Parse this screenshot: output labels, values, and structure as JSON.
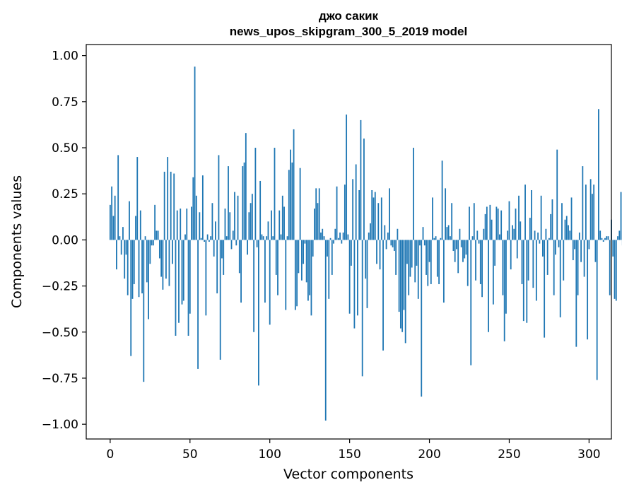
{
  "chart_data": {
    "type": "bar",
    "title": "джо сакик",
    "subtitle": "news_upos_skipgram_300_5_2019 model",
    "xlabel": "Vector components",
    "ylabel": "Components values",
    "xlim": [
      -15,
      314
    ],
    "ylim": [
      -1.08,
      1.06
    ],
    "xticks": [
      0,
      50,
      100,
      150,
      200,
      250,
      300
    ],
    "xtick_labels": [
      "0",
      "50",
      "100",
      "150",
      "200",
      "250",
      "300"
    ],
    "yticks": [
      1.0,
      0.75,
      0.5,
      0.25,
      0.0,
      -0.25,
      -0.5,
      -0.75,
      -1.0
    ],
    "ytick_labels": [
      "1.00",
      "0.75",
      "0.50",
      "0.25",
      "0.00",
      "−0.25",
      "−0.50",
      "−0.75",
      "−1.00"
    ],
    "bar_color": "#1f77b4",
    "series": [
      {
        "name": "components",
        "values": [
          0.19,
          0.29,
          0.13,
          0.24,
          -0.16,
          0.46,
          0.02,
          -0.08,
          0.07,
          -0.21,
          -0.08,
          -0.3,
          0.21,
          -0.63,
          -0.32,
          -0.24,
          0.13,
          0.45,
          -0.31,
          0.16,
          -0.29,
          -0.77,
          0.02,
          -0.23,
          -0.43,
          -0.13,
          -0.03,
          -0.03,
          0.19,
          0.05,
          0.05,
          -0.1,
          -0.2,
          -0.27,
          0.37,
          -0.21,
          0.45,
          -0.25,
          0.37,
          -0.13,
          0.36,
          -0.52,
          0.16,
          -0.45,
          0.17,
          -0.35,
          -0.33,
          0.03,
          0.17,
          -0.52,
          -0.4,
          0.18,
          0.34,
          0.94,
          0.24,
          -0.7,
          0.15,
          0.01,
          0.35,
          -0.01,
          -0.41,
          0.03,
          -0.01,
          0.02,
          0.2,
          -0.09,
          0.1,
          -0.29,
          0.46,
          -0.65,
          -0.1,
          -0.19,
          0.17,
          0.02,
          0.4,
          0.15,
          -0.05,
          0.05,
          0.26,
          -0.03,
          0.24,
          -0.18,
          -0.34,
          0.4,
          0.42,
          0.58,
          -0.08,
          0.15,
          0.2,
          0.25,
          -0.5,
          0.5,
          -0.04,
          -0.79,
          0.32,
          0.03,
          0.02,
          -0.34,
          0.02,
          0.1,
          -0.46,
          0.16,
          0.02,
          0.5,
          -0.19,
          -0.3,
          0.16,
          0.03,
          0.24,
          0.18,
          -0.38,
          0.02,
          0.38,
          0.49,
          0.42,
          0.6,
          -0.38,
          -0.36,
          -0.18,
          0.39,
          -0.22,
          -0.13,
          -0.02,
          -0.23,
          -0.33,
          -0.3,
          -0.41,
          -0.09,
          0.17,
          0.28,
          0.2,
          0.28,
          0.04,
          0.06,
          0.02,
          -0.98,
          -0.09,
          -0.32,
          0.01,
          -0.19,
          -0.02,
          0.06,
          0.29,
          0.01,
          0.04,
          -0.02,
          0.04,
          0.3,
          0.68,
          0.03,
          -0.4,
          -0.14,
          0.33,
          -0.48,
          0.41,
          -0.41,
          0.27,
          0.65,
          -0.74,
          0.55,
          -0.21,
          -0.37,
          0.04,
          0.09,
          0.27,
          0.23,
          0.26,
          -0.13,
          0.2,
          -0.16,
          0.23,
          -0.6,
          0.08,
          -0.05,
          0.04,
          0.28,
          -0.03,
          -0.04,
          -0.06,
          -0.19,
          0.06,
          -0.39,
          -0.48,
          -0.5,
          -0.38,
          -0.56,
          -0.13,
          -0.3,
          -0.2,
          -0.15,
          0.5,
          -0.23,
          -0.14,
          -0.32,
          -0.03,
          -0.85,
          0.07,
          -0.03,
          -0.19,
          -0.25,
          -0.12,
          -0.24,
          0.23,
          0.01,
          0.02,
          -0.2,
          -0.24,
          0.01,
          0.43,
          -0.34,
          0.28,
          0.07,
          0.08,
          0.02,
          0.2,
          -0.06,
          -0.12,
          -0.05,
          -0.18,
          0.06,
          -0.04,
          -0.12,
          -0.1,
          -0.08,
          -0.25,
          0.18,
          -0.68,
          0.02,
          0.2,
          -0.22,
          0.05,
          -0.02,
          -0.24,
          -0.31,
          0.06,
          0.14,
          0.18,
          -0.5,
          0.19,
          0.11,
          -0.35,
          -0.14,
          0.18,
          0.17,
          0.03,
          0.16,
          -0.3,
          -0.55,
          -0.4,
          0.05,
          0.21,
          -0.16,
          0.08,
          0.06,
          0.17,
          -0.1,
          0.24,
          0.1,
          -0.24,
          -0.44,
          0.3,
          -0.45,
          -0.22,
          0.12,
          0.27,
          -0.26,
          0.05,
          -0.33,
          0.04,
          -0.02,
          0.24,
          -0.09,
          -0.53,
          0.06,
          -0.19,
          0.01,
          0.14,
          0.22,
          -0.3,
          -0.08,
          0.49,
          -0.04,
          -0.42,
          0.2,
          -0.22,
          0.11,
          0.13,
          0.08,
          0.05,
          0.23,
          -0.11,
          -0.05,
          -0.58,
          -0.3,
          0.04,
          -0.12,
          0.4,
          -0.2,
          0.3,
          -0.54,
          -0.05,
          0.33,
          0.25,
          0.3,
          -0.12,
          -0.76,
          0.71,
          0.05,
          0.01,
          -0.01,
          0.01,
          0.02,
          0.02,
          -0.3,
          0.11,
          -0.09,
          -0.32,
          -0.33,
          0.02,
          0.05,
          0.26,
          -0.03
        ]
      }
    ]
  }
}
